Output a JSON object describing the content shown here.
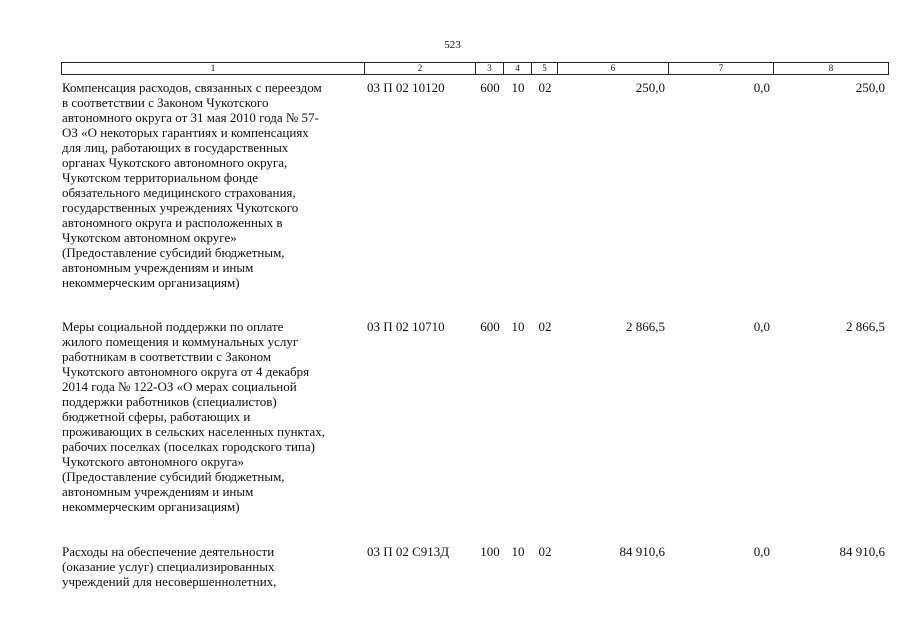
{
  "page_number": "523",
  "table": {
    "header": [
      "1",
      "2",
      "3",
      "4",
      "5",
      "6",
      "7",
      "8"
    ],
    "rows": [
      {
        "description": [
          "Компенсация расходов, связанных с переездом",
          "в соответствии с Законом Чукотского",
          "автономного округа от 31 мая 2010 года № 57-",
          "ОЗ «О некоторых гарантиях и компенсациях",
          "для лиц, работающих в государственных",
          "органах Чукотского автономного округа,",
          "Чукотском территориальном фонде",
          "обязательного медицинского страхования,",
          "государственных учреждениях Чукотского",
          "автономного округа и расположенных в",
          "Чукотском автономном округе»",
          "(Предоставление субсидий бюджетным,",
          "автономным учреждениям и иным",
          "некоммерческим организациям)"
        ],
        "cells": [
          "03 П 02 10120",
          "600",
          "10",
          "02",
          "250,0",
          "0,0",
          "250,0"
        ]
      },
      {
        "description": [
          "Меры социальной поддержки по оплате",
          "жилого помещения и коммунальных услуг",
          "работникам в соответствии с Законом",
          "Чукотского автономного округа от 4 декабря",
          "2014 года № 122-ОЗ «О мерах социальной",
          "поддержки работников (специалистов)",
          "бюджетной сферы, работающих и",
          "проживающих в сельских населенных пунктах,",
          "рабочих поселках (поселках городского типа)",
          "Чукотского автономного округа»",
          "(Предоставление субсидий бюджетным,",
          "автономным учреждениям и иным",
          "некоммерческим организациям)"
        ],
        "cells": [
          "03 П 02 10710",
          "600",
          "10",
          "02",
          "2 866,5",
          "0,0",
          "2 866,5"
        ]
      },
      {
        "description": [
          "Расходы на обеспечение деятельности",
          "(оказание услуг) специализированных",
          "учреждений для несовершеннолетних,"
        ],
        "cells": [
          "03 П 02 С913Д",
          "100",
          "10",
          "02",
          "84 910,6",
          "0,0",
          "84 910,6"
        ]
      }
    ]
  }
}
